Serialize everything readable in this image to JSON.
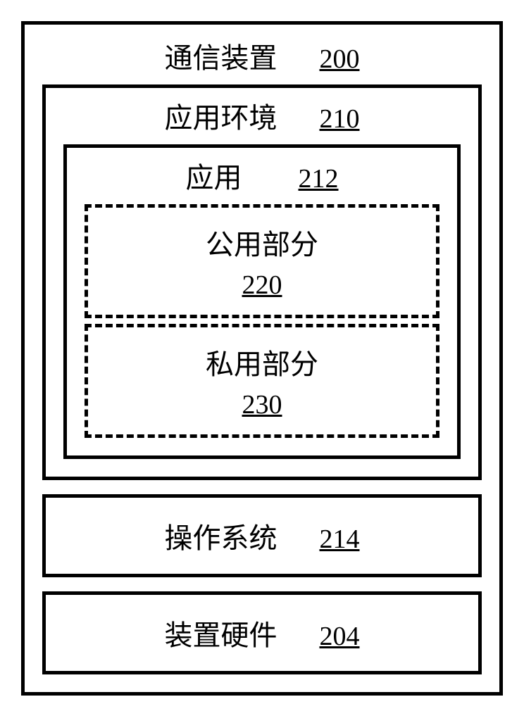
{
  "diagram": {
    "type": "block-diagram",
    "outer_border_width": 5,
    "border_color": "#000000",
    "background_color": "#ffffff",
    "font_family_cjk": "SimSun",
    "font_family_num": "Times New Roman",
    "title_fontsize": 40,
    "ref_fontsize": 38,
    "dashed_border_width": 5
  },
  "communication_device": {
    "label": "通信装置",
    "ref": "200"
  },
  "application_env": {
    "label": "应用环境",
    "ref": "210"
  },
  "application": {
    "label": "应用",
    "ref": "212"
  },
  "public_part": {
    "label": "公用部分",
    "ref": "220"
  },
  "private_part": {
    "label": "私用部分",
    "ref": "230"
  },
  "operating_system": {
    "label": "操作系统",
    "ref": "214"
  },
  "device_hardware": {
    "label": "装置硬件",
    "ref": "204"
  }
}
